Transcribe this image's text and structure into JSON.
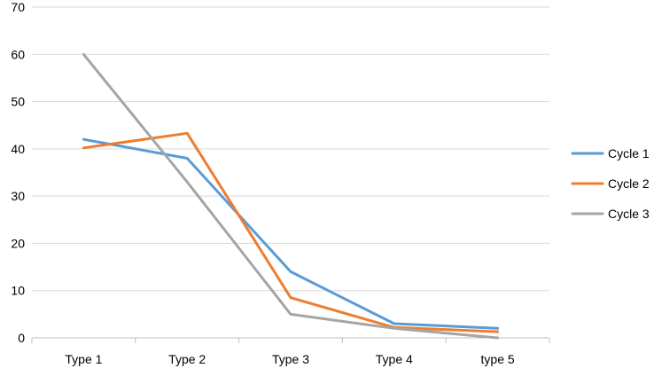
{
  "chart_data": {
    "type": "line",
    "categories": [
      "Type 1",
      "Type 2",
      "Type 3",
      "Type 4",
      "type 5"
    ],
    "series": [
      {
        "name": "Cycle 1",
        "color": "#5B9BD5",
        "values": [
          42,
          38,
          14,
          3,
          2
        ]
      },
      {
        "name": "Cycle 2",
        "color": "#ED7D31",
        "values": [
          40.2,
          43.3,
          8.5,
          2.2,
          1.3
        ]
      },
      {
        "name": "Cycle 3",
        "color": "#A5A5A5",
        "values": [
          60,
          33,
          5,
          2,
          0
        ]
      }
    ],
    "yticks": [
      0,
      10,
      20,
      30,
      40,
      50,
      60,
      70
    ],
    "ylim": [
      0,
      70
    ],
    "grid": true,
    "legend_position": "right",
    "title": "",
    "xlabel": "",
    "ylabel": ""
  }
}
